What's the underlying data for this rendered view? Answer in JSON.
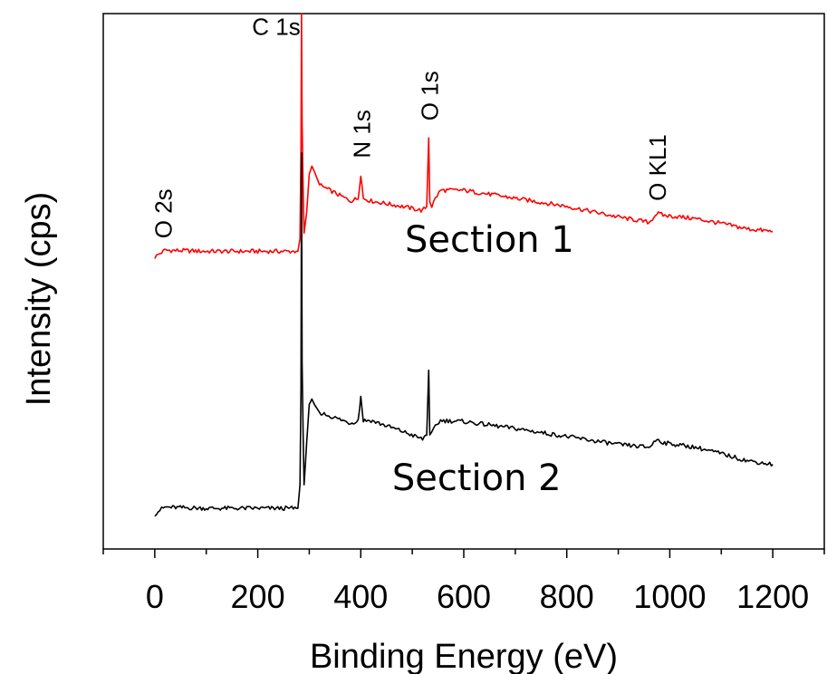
{
  "chart_data": {
    "type": "line",
    "title": "",
    "xlabel": "Binding Energy (eV)",
    "ylabel": "Intensity (cps)",
    "xlim": [
      -100,
      1300
    ],
    "ylim": [
      0,
      100
    ],
    "xticks": [
      0,
      200,
      400,
      600,
      800,
      1000,
      1200
    ],
    "ytick_labels_shown": false,
    "grid": false,
    "colors": {
      "section1": "#ff0000",
      "section2": "#000000"
    },
    "series": [
      {
        "label": "Section 1",
        "color": "#ff0000",
        "x": [
          0,
          10,
          20,
          100,
          200,
          278,
          282,
          284,
          285,
          286,
          288,
          290,
          295,
          300,
          305,
          310,
          320,
          350,
          380,
          395,
          400,
          405,
          420,
          450,
          480,
          520,
          528,
          532,
          534,
          538,
          545,
          555,
          600,
          700,
          800,
          900,
          960,
          975,
          990,
          1050,
          1100,
          1150,
          1200
        ],
        "y": [
          54.5,
          55.2,
          55.8,
          55.6,
          55.6,
          55.6,
          58.0,
          75.0,
          100.0,
          80.0,
          68.0,
          59.0,
          63.0,
          70.0,
          71.5,
          70.5,
          68.0,
          66.5,
          65.0,
          65.5,
          70.0,
          65.5,
          65.0,
          64.5,
          64.0,
          63.2,
          64.0,
          77.0,
          65.0,
          64.0,
          65.5,
          67.0,
          67.0,
          65.5,
          64.0,
          62.0,
          61.0,
          62.7,
          62.3,
          61.7,
          60.8,
          59.8,
          59.3
        ]
      },
      {
        "label": "Section 2",
        "color": "#000000",
        "x": [
          0,
          10,
          20,
          100,
          200,
          278,
          282,
          284,
          285,
          286,
          288,
          290,
          295,
          300,
          305,
          310,
          320,
          350,
          380,
          395,
          400,
          405,
          420,
          450,
          480,
          520,
          528,
          532,
          534,
          538,
          545,
          555,
          600,
          700,
          800,
          900,
          960,
          975,
          990,
          1050,
          1100,
          1150,
          1200
        ],
        "y": [
          6.5,
          7.3,
          7.8,
          7.6,
          7.6,
          7.6,
          12.0,
          30.0,
          74.0,
          35.0,
          22.0,
          12.0,
          20.0,
          27.0,
          28.0,
          27.0,
          25.5,
          24.5,
          23.5,
          24.0,
          28.5,
          24.0,
          24.0,
          23.0,
          22.0,
          20.5,
          21.5,
          33.5,
          21.0,
          21.5,
          23.0,
          24.0,
          23.8,
          22.5,
          21.0,
          19.5,
          19.0,
          20.5,
          19.8,
          19.0,
          17.8,
          16.5,
          15.8
        ]
      }
    ],
    "annotations": [
      {
        "text": "C 1s",
        "x": 283,
        "y": 96,
        "anchor": "end",
        "rotate": 0
      },
      {
        "text": "N 1s",
        "x": 400,
        "y": 73,
        "anchor": "start",
        "rotate": -90
      },
      {
        "text": "O 1s",
        "x": 532,
        "y": 80,
        "anchor": "start",
        "rotate": -90
      },
      {
        "text": "O KL1",
        "x": 975,
        "y": 65,
        "anchor": "start",
        "rotate": -90
      },
      {
        "text": "O 2s",
        "x": 15,
        "y": 58,
        "anchor": "start",
        "rotate": -90
      },
      {
        "text": "Section 1",
        "x": 650,
        "y": 55.5,
        "anchor": "middle",
        "rotate": 0,
        "style": "section"
      },
      {
        "text": "Section 2",
        "x": 625,
        "y": 11,
        "anchor": "middle",
        "rotate": 0,
        "style": "section"
      }
    ]
  }
}
